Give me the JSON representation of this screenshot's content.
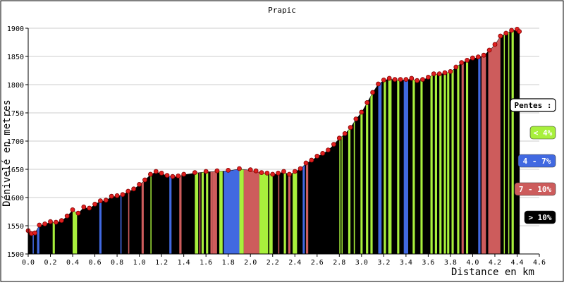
{
  "chart_data": {
    "type": "area",
    "title": "Prapic",
    "xlabel": "Distance en km",
    "ylabel": "Dénivelé en metres",
    "xlim": [
      0,
      4.6
    ],
    "ylim": [
      1500,
      1900
    ],
    "xticks": [
      "0.0",
      "0.2",
      "0.4",
      "0.6",
      "0.8",
      "1.0",
      "1.2",
      "1.4",
      "1.6",
      "1.8",
      "2.0",
      "2.2",
      "2.4",
      "2.6",
      "2.8",
      "3.0",
      "3.2",
      "3.4",
      "3.6",
      "3.8",
      "4.0",
      "4.2",
      "4.4",
      "4.6"
    ],
    "yticks": [
      "1500",
      "1550",
      "1600",
      "1650",
      "1700",
      "1750",
      "1800",
      "1850",
      "1900"
    ],
    "grid": true,
    "legend_placement": "right",
    "legend": {
      "title": "Pentes :",
      "items": [
        {
          "label": "< 4%",
          "color": "#a8f03c",
          "text_color": "#ffffff"
        },
        {
          "label": "4 - 7%",
          "color": "#4169e1",
          "text_color": "#ffffff"
        },
        {
          "label": "7 - 10%",
          "color": "#cd5c5c",
          "text_color": "#ffffff"
        },
        {
          "label": "> 10%",
          "color": "#000000",
          "text_color": "#ffffff"
        }
      ]
    },
    "elevation": {
      "x": [
        0.0,
        0.03,
        0.06,
        0.1,
        0.15,
        0.2,
        0.25,
        0.3,
        0.35,
        0.4,
        0.45,
        0.5,
        0.55,
        0.6,
        0.65,
        0.7,
        0.75,
        0.8,
        0.85,
        0.9,
        0.95,
        1.0,
        1.05,
        1.1,
        1.15,
        1.2,
        1.25,
        1.3,
        1.35,
        1.4,
        1.5,
        1.6,
        1.7,
        1.8,
        1.9,
        2.0,
        2.05,
        2.1,
        2.15,
        2.2,
        2.25,
        2.3,
        2.35,
        2.4,
        2.45,
        2.5,
        2.55,
        2.6,
        2.65,
        2.7,
        2.75,
        2.8,
        2.85,
        2.9,
        2.95,
        3.0,
        3.05,
        3.1,
        3.15,
        3.2,
        3.25,
        3.3,
        3.35,
        3.4,
        3.45,
        3.5,
        3.55,
        3.6,
        3.65,
        3.7,
        3.75,
        3.8,
        3.85,
        3.9,
        3.95,
        4.0,
        4.05,
        4.1,
        4.15,
        4.2,
        4.25,
        4.3,
        4.35,
        4.4,
        4.42
      ],
      "y": [
        1540,
        1535,
        1536,
        1550,
        1552,
        1556,
        1555,
        1558,
        1566,
        1577,
        1571,
        1582,
        1580,
        1587,
        1593,
        1594,
        1601,
        1602,
        1604,
        1610,
        1614,
        1622,
        1630,
        1640,
        1645,
        1642,
        1638,
        1636,
        1637,
        1640,
        1643,
        1645,
        1646,
        1647,
        1650,
        1648,
        1646,
        1643,
        1642,
        1640,
        1642,
        1645,
        1640,
        1645,
        1650,
        1660,
        1665,
        1672,
        1677,
        1683,
        1693,
        1704,
        1712,
        1723,
        1738,
        1750,
        1767,
        1785,
        1800,
        1807,
        1810,
        1808,
        1808,
        1808,
        1810,
        1806,
        1808,
        1812,
        1818,
        1818,
        1820,
        1822,
        1830,
        1838,
        1842,
        1846,
        1848,
        1851,
        1860,
        1870,
        1885,
        1890,
        1895,
        1897,
        1893
      ]
    },
    "slope_bands": [
      {
        "from": 0.0,
        "to": 0.08,
        "cat": "> 10%"
      },
      {
        "from": 0.04,
        "to": 0.05,
        "cat": "4 - 7%"
      },
      {
        "from": 0.08,
        "to": 0.1,
        "cat": "4 - 7%"
      },
      {
        "from": 0.22,
        "to": 0.24,
        "cat": "< 4%"
      },
      {
        "from": 0.4,
        "to": 0.44,
        "cat": "< 4%"
      },
      {
        "from": 0.64,
        "to": 0.66,
        "cat": "4 - 7%"
      },
      {
        "from": 0.83,
        "to": 0.84,
        "cat": "4 - 7%"
      },
      {
        "from": 0.9,
        "to": 0.91,
        "cat": "7 - 10%"
      },
      {
        "from": 1.02,
        "to": 1.04,
        "cat": "7 - 10%"
      },
      {
        "from": 1.1,
        "to": 1.11,
        "cat": "< 4%"
      },
      {
        "from": 1.27,
        "to": 1.29,
        "cat": "4 - 7%"
      },
      {
        "from": 1.36,
        "to": 1.38,
        "cat": "7 - 10%"
      },
      {
        "from": 1.5,
        "to": 1.53,
        "cat": "< 4%"
      },
      {
        "from": 1.54,
        "to": 1.55,
        "cat": "7 - 10%"
      },
      {
        "from": 1.56,
        "to": 1.58,
        "cat": "< 4%"
      },
      {
        "from": 1.6,
        "to": 1.62,
        "cat": "< 4%"
      },
      {
        "from": 1.64,
        "to": 1.66,
        "cat": "7 - 10%"
      },
      {
        "from": 1.66,
        "to": 1.7,
        "cat": "7 - 10%"
      },
      {
        "from": 1.72,
        "to": 1.75,
        "cat": "< 4%"
      },
      {
        "from": 1.76,
        "to": 1.9,
        "cat": "4 - 7%"
      },
      {
        "from": 1.9,
        "to": 1.94,
        "cat": "< 4%"
      },
      {
        "from": 1.94,
        "to": 2.08,
        "cat": "7 - 10%"
      },
      {
        "from": 2.08,
        "to": 2.16,
        "cat": "< 4%"
      },
      {
        "from": 2.17,
        "to": 2.2,
        "cat": "< 4%"
      },
      {
        "from": 2.25,
        "to": 2.26,
        "cat": "7 - 10%"
      },
      {
        "from": 2.3,
        "to": 2.32,
        "cat": "< 4%"
      },
      {
        "from": 2.34,
        "to": 2.36,
        "cat": "7 - 10%"
      },
      {
        "from": 2.38,
        "to": 2.42,
        "cat": "< 4%"
      },
      {
        "from": 2.47,
        "to": 2.49,
        "cat": "4 - 7%"
      },
      {
        "from": 2.5,
        "to": 2.52,
        "cat": "7 - 10%"
      },
      {
        "from": 2.8,
        "to": 2.81,
        "cat": "< 4%"
      },
      {
        "from": 2.82,
        "to": 2.83,
        "cat": "< 4%"
      },
      {
        "from": 2.88,
        "to": 2.9,
        "cat": "< 4%"
      },
      {
        "from": 2.93,
        "to": 2.94,
        "cat": "< 4%"
      },
      {
        "from": 2.99,
        "to": 3.01,
        "cat": "< 4%"
      },
      {
        "from": 3.04,
        "to": 3.06,
        "cat": "< 4%"
      },
      {
        "from": 3.08,
        "to": 3.1,
        "cat": "< 4%"
      },
      {
        "from": 3.15,
        "to": 3.18,
        "cat": "4 - 7%"
      },
      {
        "from": 3.2,
        "to": 3.22,
        "cat": "< 4%"
      },
      {
        "from": 3.24,
        "to": 3.27,
        "cat": "< 4%"
      },
      {
        "from": 3.32,
        "to": 3.34,
        "cat": "< 4%"
      },
      {
        "from": 3.38,
        "to": 3.42,
        "cat": "4 - 7%"
      },
      {
        "from": 3.46,
        "to": 3.48,
        "cat": "< 4%"
      },
      {
        "from": 3.53,
        "to": 3.55,
        "cat": "< 4%"
      },
      {
        "from": 3.62,
        "to": 3.64,
        "cat": "< 4%"
      },
      {
        "from": 3.66,
        "to": 3.68,
        "cat": "< 4%"
      },
      {
        "from": 3.7,
        "to": 3.72,
        "cat": "< 4%"
      },
      {
        "from": 3.74,
        "to": 3.76,
        "cat": "< 4%"
      },
      {
        "from": 3.77,
        "to": 3.79,
        "cat": "< 4%"
      },
      {
        "from": 3.81,
        "to": 3.83,
        "cat": "< 4%"
      },
      {
        "from": 3.86,
        "to": 3.88,
        "cat": "< 4%"
      },
      {
        "from": 3.9,
        "to": 3.92,
        "cat": "7 - 10%"
      },
      {
        "from": 3.94,
        "to": 3.96,
        "cat": "< 4%"
      },
      {
        "from": 4.05,
        "to": 4.07,
        "cat": "4 - 7%"
      },
      {
        "from": 4.08,
        "to": 4.12,
        "cat": "7 - 10%"
      },
      {
        "from": 4.14,
        "to": 4.25,
        "cat": "7 - 10%"
      },
      {
        "from": 4.28,
        "to": 4.29,
        "cat": "< 4%"
      },
      {
        "from": 4.32,
        "to": 4.33,
        "cat": "< 4%"
      },
      {
        "from": 4.35,
        "to": 4.37,
        "cat": "< 4%"
      }
    ]
  }
}
